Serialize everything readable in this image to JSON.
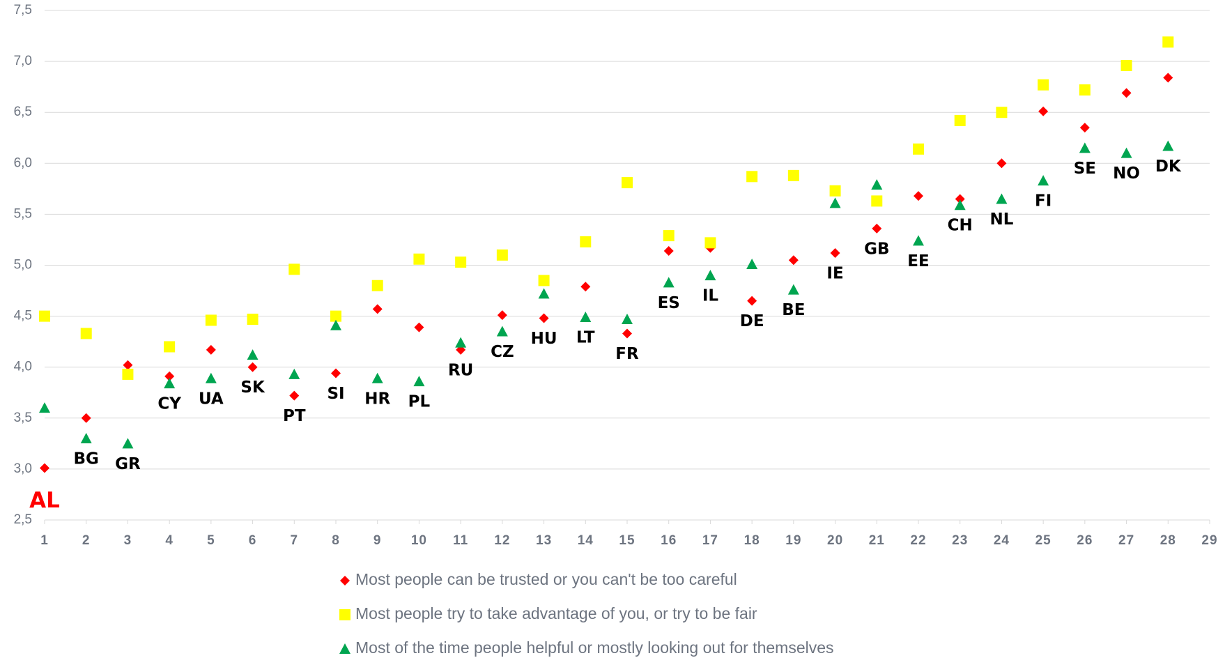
{
  "chart_data": {
    "type": "scatter",
    "x": [
      1,
      2,
      3,
      4,
      5,
      6,
      7,
      8,
      9,
      10,
      11,
      12,
      13,
      14,
      15,
      16,
      17,
      18,
      19,
      20,
      21,
      22,
      23,
      24,
      25,
      26,
      27,
      28
    ],
    "point_labels": [
      "AL",
      "BG",
      "GR",
      "CY",
      "UA",
      "SK",
      "PT",
      "SI",
      "HR",
      "PL",
      "RU",
      "CZ",
      "HU",
      "LT",
      "FR",
      "ES",
      "IL",
      "DE",
      "BE",
      "IE",
      "GB",
      "EE",
      "CH",
      "NL",
      "FI",
      "SE",
      "NO",
      "DK"
    ],
    "point_label_colors": [
      "#ff0000",
      "#000000",
      "#000000",
      "#000000",
      "#000000",
      "#000000",
      "#000000",
      "#000000",
      "#000000",
      "#000000",
      "#000000",
      "#000000",
      "#000000",
      "#000000",
      "#000000",
      "#000000",
      "#000000",
      "#000000",
      "#000000",
      "#000000",
      "#000000",
      "#000000",
      "#000000",
      "#000000",
      "#000000",
      "#000000",
      "#000000",
      "#000000"
    ],
    "series": [
      {
        "name": "Most people can be trusted or you can't be too careful",
        "color": "#ff0000",
        "marker": "diamond",
        "values": [
          3.01,
          3.5,
          4.02,
          3.91,
          4.17,
          4.0,
          3.72,
          3.94,
          4.57,
          4.39,
          4.17,
          4.51,
          4.48,
          4.79,
          4.33,
          5.14,
          5.17,
          4.65,
          5.05,
          5.12,
          5.36,
          5.68,
          5.65,
          6.0,
          6.51,
          6.35,
          6.69,
          6.84
        ]
      },
      {
        "name": "Most people try to take advantage of you, or try to be fair",
        "color": "#ffff00",
        "marker": "square",
        "values": [
          4.5,
          4.33,
          3.93,
          4.2,
          4.46,
          4.47,
          4.96,
          4.5,
          4.8,
          5.06,
          5.03,
          5.1,
          4.85,
          5.23,
          5.81,
          5.29,
          5.22,
          5.87,
          5.88,
          5.73,
          5.63,
          6.14,
          6.42,
          6.5,
          6.77,
          6.72,
          6.96,
          7.19
        ]
      },
      {
        "name": "Most of the time people helpful or mostly looking out for themselves",
        "color": "#00a550",
        "marker": "triangle",
        "values": [
          3.6,
          3.3,
          3.25,
          3.84,
          3.89,
          4.12,
          3.93,
          4.41,
          3.89,
          3.86,
          4.24,
          4.35,
          4.72,
          4.49,
          4.47,
          4.83,
          4.9,
          5.01,
          4.76,
          5.61,
          5.79,
          5.24,
          5.59,
          5.65,
          5.83,
          6.15,
          6.1,
          6.17
        ]
      }
    ],
    "xlim": [
      1,
      29
    ],
    "ylim": [
      2.5,
      7.5
    ],
    "xticks": [
      1,
      2,
      3,
      4,
      5,
      6,
      7,
      8,
      9,
      10,
      11,
      12,
      13,
      14,
      15,
      16,
      17,
      18,
      19,
      20,
      21,
      22,
      23,
      24,
      25,
      26,
      27,
      28,
      29
    ],
    "yticks": [
      {
        "value": 2.5,
        "label": "2,5"
      },
      {
        "value": 3.0,
        "label": "3,0"
      },
      {
        "value": 3.5,
        "label": "3,5"
      },
      {
        "value": 4.0,
        "label": "4,0"
      },
      {
        "value": 4.5,
        "label": "4,5"
      },
      {
        "value": 5.0,
        "label": "5,0"
      },
      {
        "value": 5.5,
        "label": "5,5"
      },
      {
        "value": 6.0,
        "label": "6,0"
      },
      {
        "value": 6.5,
        "label": "6,5"
      },
      {
        "value": 7.0,
        "label": "7,0"
      },
      {
        "value": 7.5,
        "label": "7,5"
      }
    ],
    "grid": true,
    "legend": "bottom"
  }
}
